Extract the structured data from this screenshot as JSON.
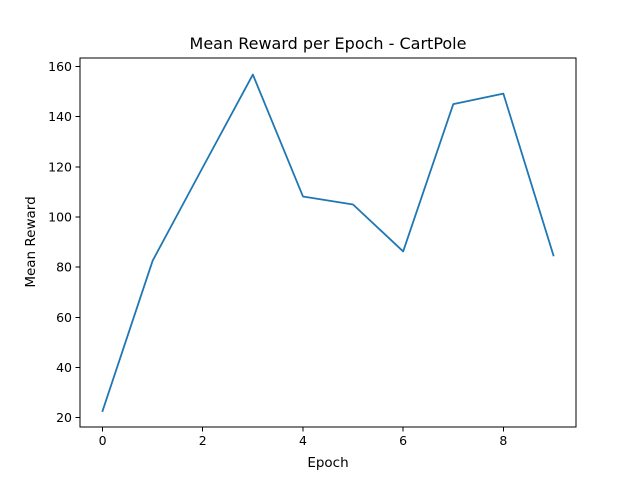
{
  "chart_data": {
    "type": "line",
    "title": "Mean Reward per Epoch - CartPole",
    "xlabel": "Epoch",
    "ylabel": "Mean Reward",
    "xlim": [
      -0.45,
      9.45
    ],
    "ylim": [
      16.3,
      163.4
    ],
    "grid": false,
    "x_ticks": [
      0,
      2,
      4,
      6,
      8
    ],
    "y_ticks": [
      20,
      40,
      60,
      80,
      100,
      120,
      140,
      160
    ],
    "series": [
      {
        "name": "Mean Reward",
        "color": "#1f77b4",
        "x": [
          0,
          1,
          2,
          3,
          4,
          5,
          6,
          7,
          8,
          9
        ],
        "values": [
          22.7,
          82.6,
          119.8,
          156.8,
          108.2,
          105.0,
          86.3,
          145.0,
          149.2,
          84.7
        ]
      }
    ]
  }
}
